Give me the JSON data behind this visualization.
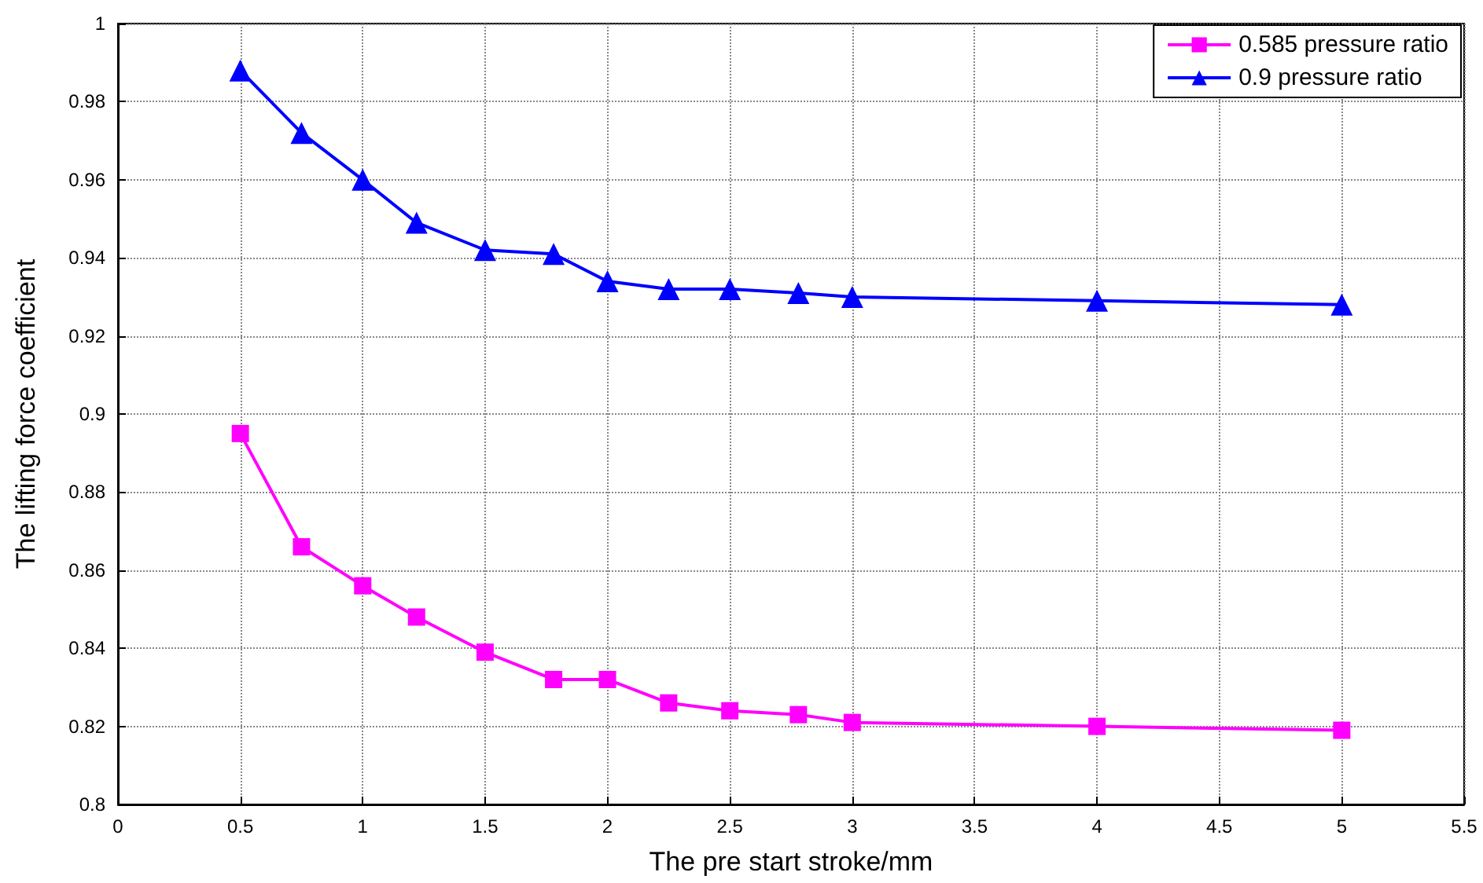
{
  "chart_data": {
    "type": "line",
    "xlabel": "The pre start stroke/mm",
    "ylabel": "The lifting force coefficient",
    "xlim": [
      0,
      5.5
    ],
    "xticks": [
      0,
      0.5,
      1,
      1.5,
      2,
      2.5,
      3,
      3.5,
      4,
      4.5,
      5,
      5.5
    ],
    "ylim": [
      0.8,
      1
    ],
    "yticks": [
      0.8,
      0.82,
      0.84,
      0.86,
      0.88,
      0.9,
      0.92,
      0.94,
      0.96,
      0.98,
      1
    ],
    "grid": true,
    "legend": "top right",
    "line_style": "solid",
    "x": [
      0.5,
      0.75,
      1,
      1.22,
      1.5,
      1.78,
      2,
      2.25,
      2.5,
      2.78,
      3,
      4,
      5
    ],
    "series": [
      {
        "name": "0.585 pressure ratio",
        "color": "#ff00ff",
        "marker": "square",
        "values": [
          0.895,
          0.866,
          0.856,
          0.848,
          0.839,
          0.832,
          0.832,
          0.826,
          0.824,
          0.823,
          0.821,
          0.82,
          0.819
        ]
      },
      {
        "name": "0.9 pressure ratio",
        "color": "#0000ff",
        "marker": "triangle",
        "values": [
          0.988,
          0.972,
          0.96,
          0.949,
          0.942,
          0.941,
          0.934,
          0.932,
          0.932,
          0.931,
          0.93,
          0.929,
          0.928
        ]
      }
    ]
  }
}
